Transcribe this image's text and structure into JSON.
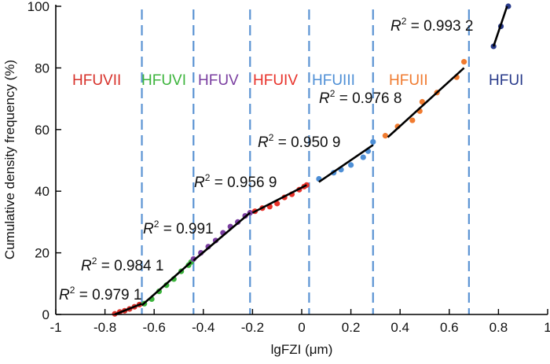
{
  "chart_data": {
    "type": "scatter",
    "xlabel": "lgFZI (μm)",
    "ylabel": "Cumulative density frequency (%)",
    "xlim": [
      -1,
      1
    ],
    "ylim": [
      0,
      100
    ],
    "xticks": [
      "-1",
      "-0.8",
      "-0.6",
      "-0.4",
      "-0.2",
      "0",
      "0.2",
      "0.4",
      "0.6",
      "0.8",
      "1"
    ],
    "yticks": [
      "0",
      "20",
      "40",
      "60",
      "80",
      "100"
    ],
    "boundaries": [
      -0.65,
      -0.44,
      -0.21,
      0.03,
      0.29,
      0.68
    ],
    "series": [
      {
        "name": "HFUVII",
        "color": "#d7312a",
        "r2": "0.979 1",
        "points": [
          [
            -0.76,
            0.2
          ],
          [
            -0.74,
            0.8
          ],
          [
            -0.72,
            1.2
          ],
          [
            -0.7,
            1.8
          ],
          [
            -0.68,
            2.5
          ],
          [
            -0.66,
            3.2
          ]
        ],
        "fit": [
          [
            -0.76,
            0
          ],
          [
            -0.65,
            3.5
          ]
        ]
      },
      {
        "name": "HFUVI",
        "color": "#3cb43c",
        "r2": "0.984 1",
        "points": [
          [
            -0.64,
            3.5
          ],
          [
            -0.61,
            5
          ],
          [
            -0.58,
            7.5
          ],
          [
            -0.55,
            9.5
          ],
          [
            -0.52,
            11.5
          ],
          [
            -0.49,
            14
          ],
          [
            -0.46,
            16
          ],
          [
            -0.45,
            17
          ]
        ],
        "fit": [
          [
            -0.65,
            3
          ],
          [
            -0.45,
            17
          ]
        ]
      },
      {
        "name": "HFUV",
        "color": "#7a3ea0",
        "r2": "0.991",
        "points": [
          [
            -0.44,
            18
          ],
          [
            -0.41,
            20
          ],
          [
            -0.38,
            22
          ],
          [
            -0.35,
            24
          ],
          [
            -0.32,
            26.5
          ],
          [
            -0.29,
            28.5
          ],
          [
            -0.26,
            30
          ],
          [
            -0.23,
            32
          ],
          [
            -0.21,
            33
          ]
        ],
        "fit": [
          [
            -0.44,
            17.5
          ],
          [
            -0.21,
            33
          ]
        ]
      },
      {
        "name": "HFUIV",
        "color": "#e8322a",
        "r2": "0.956 9",
        "points": [
          [
            -0.19,
            33.5
          ],
          [
            -0.16,
            34.5
          ],
          [
            -0.13,
            35
          ],
          [
            -0.1,
            36
          ],
          [
            -0.07,
            38
          ],
          [
            -0.04,
            39
          ],
          [
            -0.01,
            40.5
          ],
          [
            0.01,
            41.5
          ],
          [
            0.02,
            42
          ]
        ],
        "fit": [
          [
            -0.2,
            33
          ],
          [
            0.02,
            42
          ]
        ]
      },
      {
        "name": "HFUIII",
        "color": "#4e8fd6",
        "r2": "0.950 9",
        "points": [
          [
            0.07,
            44
          ],
          [
            0.13,
            46
          ],
          [
            0.16,
            47
          ],
          [
            0.2,
            48.5
          ],
          [
            0.25,
            51
          ],
          [
            0.27,
            53
          ],
          [
            0.29,
            56
          ]
        ],
        "fit": [
          [
            0.07,
            43
          ],
          [
            0.29,
            55
          ]
        ]
      },
      {
        "name": "HFUII",
        "color": "#f07b30",
        "r2": "0.976 8",
        "points": [
          [
            0.34,
            58
          ],
          [
            0.39,
            61
          ],
          [
            0.45,
            63
          ],
          [
            0.48,
            66
          ],
          [
            0.49,
            69
          ],
          [
            0.55,
            72
          ],
          [
            0.63,
            77
          ],
          [
            0.66,
            82
          ]
        ],
        "fit": [
          [
            0.35,
            57.5
          ],
          [
            0.66,
            80
          ]
        ]
      },
      {
        "name": "HFUI",
        "color": "#283a8a",
        "r2": "0.993 2",
        "points": [
          [
            0.78,
            87
          ],
          [
            0.81,
            93.5
          ],
          [
            0.84,
            100
          ]
        ],
        "fit": [
          [
            0.78,
            87
          ],
          [
            0.835,
            100
          ]
        ]
      }
    ],
    "r2_prefix": "R",
    "r2_sup": "2",
    "r2_eq": " = "
  }
}
